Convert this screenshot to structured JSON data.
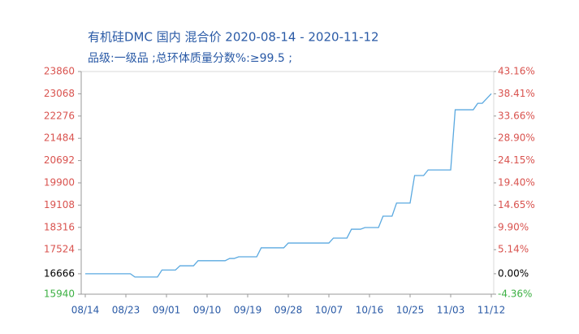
{
  "chart_data": {
    "type": "line",
    "title": "有机硅DMC 国内 混合价 2020-08-14 - 2020-11-12",
    "subtitle": "品级:一级品 ;总环体质量分数%:≥99.5 ;",
    "x": [
      "08/14",
      "08/15",
      "08/16",
      "08/17",
      "08/18",
      "08/19",
      "08/20",
      "08/21",
      "08/22",
      "08/23",
      "08/24",
      "08/25",
      "08/26",
      "08/27",
      "08/28",
      "08/29",
      "08/30",
      "08/31",
      "09/01",
      "09/02",
      "09/03",
      "09/04",
      "09/05",
      "09/06",
      "09/07",
      "09/08",
      "09/09",
      "09/10",
      "09/11",
      "09/12",
      "09/13",
      "09/14",
      "09/15",
      "09/16",
      "09/17",
      "09/18",
      "09/19",
      "09/20",
      "09/21",
      "09/22",
      "09/23",
      "09/24",
      "09/25",
      "09/26",
      "09/27",
      "09/28",
      "09/29",
      "09/30",
      "10/01",
      "10/02",
      "10/03",
      "10/04",
      "10/05",
      "10/06",
      "10/07",
      "10/08",
      "10/09",
      "10/10",
      "10/11",
      "10/12",
      "10/13",
      "10/14",
      "10/15",
      "10/16",
      "10/17",
      "10/18",
      "10/19",
      "10/20",
      "10/21",
      "10/22",
      "10/23",
      "10/24",
      "10/25",
      "10/26",
      "10/27",
      "10/28",
      "10/29",
      "10/30",
      "10/31",
      "11/01",
      "11/02",
      "11/03",
      "11/04",
      "11/05",
      "11/06",
      "11/07",
      "11/08",
      "11/09",
      "11/10",
      "11/11",
      "11/12"
    ],
    "values": [
      16666,
      16666,
      16666,
      16666,
      16666,
      16666,
      16666,
      16666,
      16666,
      16666,
      16666,
      16550,
      16550,
      16550,
      16550,
      16550,
      16550,
      16800,
      16800,
      16800,
      16800,
      16950,
      16950,
      16950,
      16950,
      17130,
      17130,
      17130,
      17130,
      17130,
      17130,
      17130,
      17210,
      17210,
      17270,
      17270,
      17270,
      17270,
      17270,
      17590,
      17590,
      17590,
      17590,
      17590,
      17590,
      17760,
      17760,
      17760,
      17760,
      17760,
      17760,
      17760,
      17760,
      17760,
      17760,
      17935,
      17935,
      17935,
      17935,
      18250,
      18250,
      18250,
      18310,
      18310,
      18310,
      18310,
      18715,
      18715,
      18715,
      19180,
      19180,
      19180,
      19180,
      20160,
      20160,
      20160,
      20360,
      20360,
      20360,
      20360,
      20360,
      20360,
      22500,
      22500,
      22500,
      22500,
      22500,
      22730,
      22730,
      22900,
      23070
    ],
    "color": "#5aa9e0",
    "up_color": "#d9534f",
    "down_color": "#3cb043",
    "ylim": [
      15940,
      23860
    ],
    "yticks": [
      15940,
      16666,
      17524,
      18316,
      19108,
      19900,
      20692,
      21484,
      22276,
      23068,
      23860
    ],
    "y2lim": [
      -4.36,
      43.16
    ],
    "y2ticks": [
      {
        "value": -4.36,
        "label": "-4.36%"
      },
      {
        "value": 0,
        "label": "0.00%"
      },
      {
        "value": 5.14,
        "label": "5.14%"
      },
      {
        "value": 9.9,
        "label": "9.90%"
      },
      {
        "value": 14.65,
        "label": "14.65%"
      },
      {
        "value": 19.4,
        "label": "19.40%"
      },
      {
        "value": 24.15,
        "label": "24.15%"
      },
      {
        "value": 28.9,
        "label": "28.90%"
      },
      {
        "value": 33.66,
        "label": "33.66%"
      },
      {
        "value": 38.41,
        "label": "38.41%"
      },
      {
        "value": 43.16,
        "label": "43.16%"
      }
    ]
  }
}
